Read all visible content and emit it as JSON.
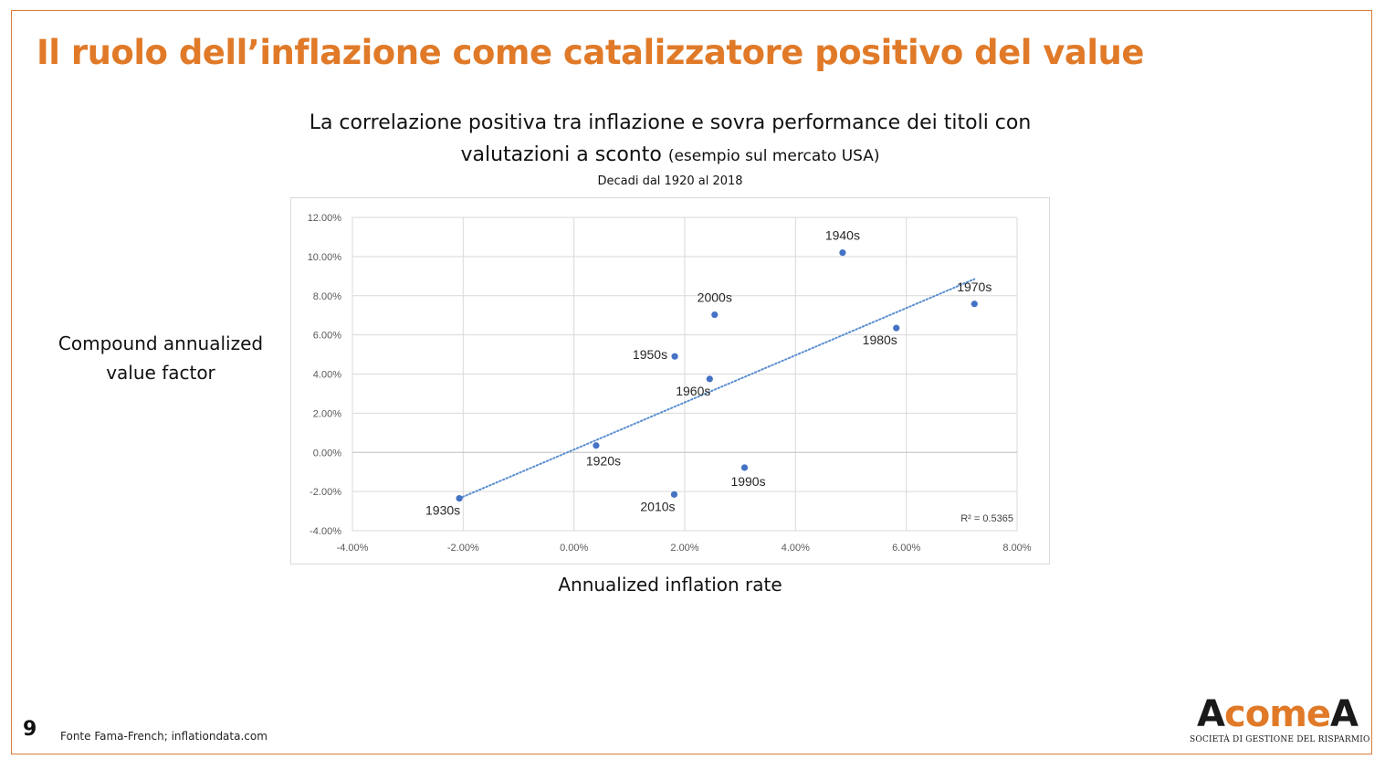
{
  "slide": {
    "title": "Il ruolo dell’inflazione come catalizzatore positivo del value",
    "subtitle_line1": "La correlazione positiva tra inflazione e sovra performance dei titoli con",
    "subtitle_line2_main": "valutazioni a sconto",
    "subtitle_line2_paren": "(esempio sul mercato USA)",
    "subtitle_line3": "Decadi dal 1920 al 2018",
    "page_number": "9",
    "source": "Fonte Fama-French; inflationdata.com",
    "y_axis_title_line1": "Compound annualized",
    "y_axis_title_line2": "value factor",
    "x_axis_title": "Annualized inflation rate"
  },
  "logo": {
    "text_part1": "A",
    "text_part2": "come",
    "text_part3": "A",
    "tagline": "SOCIETÀ DI GESTIONE DEL RISPARMIO",
    "colors": {
      "dark": "#1a1a1a",
      "orange": "#e07a28"
    }
  },
  "colors": {
    "title": "#e07a28",
    "frame": "#d97a3a",
    "points": "#4472c4",
    "trendline": "#5b8fd0",
    "grid": "#d9d9d9"
  },
  "chart_data": {
    "type": "scatter",
    "xlim": [
      -0.04,
      0.08
    ],
    "ylim": [
      -0.04,
      0.12
    ],
    "x_ticks": [
      -0.04,
      -0.02,
      0.0,
      0.02,
      0.04,
      0.06,
      0.08
    ],
    "y_ticks": [
      -0.04,
      -0.02,
      0.0,
      0.02,
      0.04,
      0.06,
      0.08,
      0.1,
      0.12
    ],
    "x_tick_labels": [
      "-4.00%",
      "-2.00%",
      "0.00%",
      "2.00%",
      "4.00%",
      "6.00%",
      "8.00%"
    ],
    "y_tick_labels": [
      "-4.00%",
      "-2.00%",
      "0.00%",
      "2.00%",
      "4.00%",
      "6.00%",
      "8.00%",
      "10.00%",
      "12.00%"
    ],
    "grid": true,
    "points": [
      {
        "label": "1920s",
        "x": 0.004,
        "y": 0.0035,
        "label_pos": "below-right"
      },
      {
        "label": "1930s",
        "x": -0.0207,
        "y": -0.0235,
        "label_pos": "below-left"
      },
      {
        "label": "1940s",
        "x": 0.0485,
        "y": 0.102,
        "label_pos": "above"
      },
      {
        "label": "1950s",
        "x": 0.0182,
        "y": 0.049,
        "label_pos": "left"
      },
      {
        "label": "1960s",
        "x": 0.0245,
        "y": 0.0375,
        "label_pos": "below-left"
      },
      {
        "label": "1970s",
        "x": 0.0723,
        "y": 0.0758,
        "label_pos": "above"
      },
      {
        "label": "1980s",
        "x": 0.0582,
        "y": 0.0635,
        "label_pos": "below-left"
      },
      {
        "label": "1990s",
        "x": 0.0308,
        "y": -0.0078,
        "label_pos": "below"
      },
      {
        "label": "2000s",
        "x": 0.0254,
        "y": 0.0703,
        "label_pos": "above"
      },
      {
        "label": "2010s",
        "x": 0.0181,
        "y": -0.0215,
        "label_pos": "below-left"
      }
    ],
    "trendline": {
      "style": "dotted",
      "x": [
        -0.0207,
        0.0723
      ],
      "y": [
        -0.0235,
        0.0885
      ],
      "r_squared_label": "R² = 0.5365"
    }
  }
}
